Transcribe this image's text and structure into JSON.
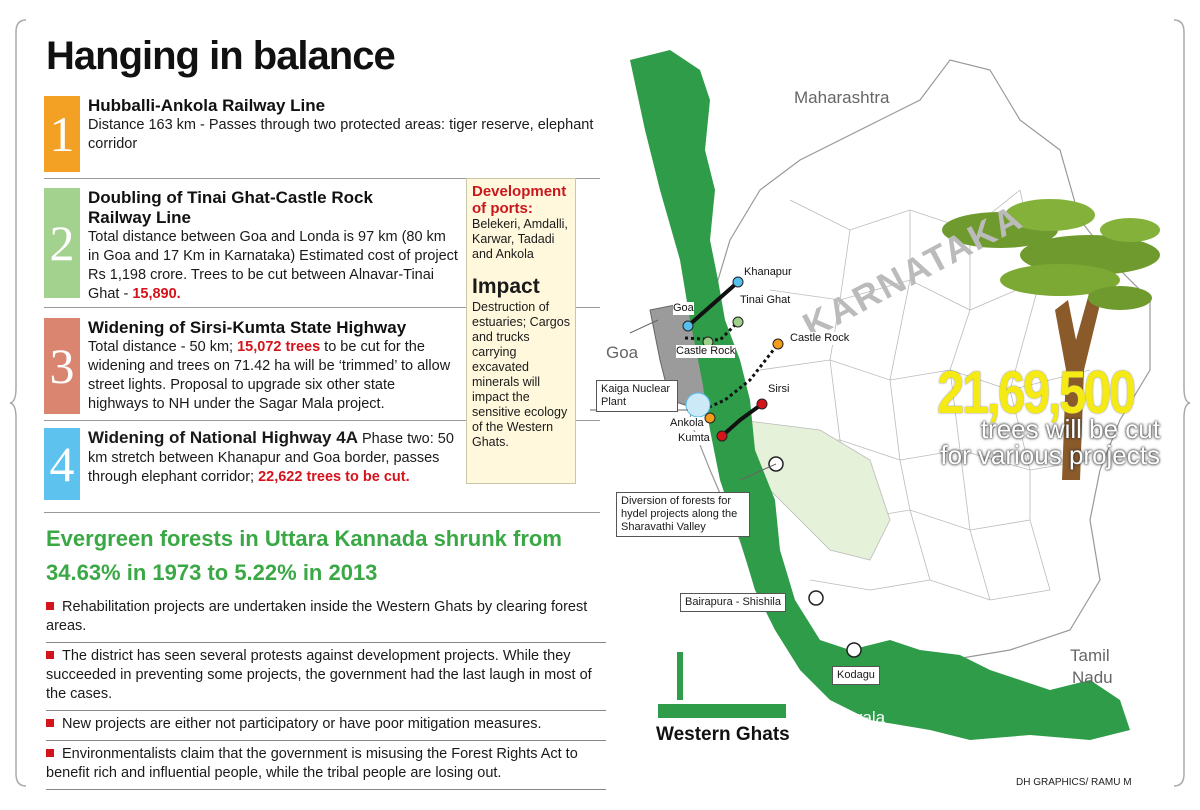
{
  "title": "Hanging in balance",
  "items": [
    {
      "num": "1",
      "color": "#f39c1a",
      "heading": "Hubballi-Ankola Railway Line",
      "text": "Distance 163 km - Passes through two protected areas: tiger reserve, elephant corridor",
      "highlight": ""
    },
    {
      "num": "2",
      "color": "#9fd08a",
      "heading": "Doubling of Tinai Ghat-Castle Rock Railway Line",
      "text": "Total distance between Goa and Londa is 97 km (80 km in Goa and 17 Km in Karnataka) Estimated cost of project Rs 1,198 crore. Trees to be cut between Alnavar-Tinai Ghat - ",
      "highlight": "15,890."
    },
    {
      "num": "3",
      "color": "#d77f68",
      "heading": "Widening of Sirsi-Kumta State Highway",
      "text_a": "Total distance - 50 km; ",
      "highlight": "15,072 trees",
      "text_b": " to be cut for the widening and trees on 71.42 ha will be ‘trimmed’ to allow street lights. Proposal to upgrade six other state highways  to NH under the Sagar Mala project."
    },
    {
      "num": "4",
      "color": "#55bfee",
      "heading": "Widening of National Highway 4A",
      "text": " Phase two: 50 km stretch between Khanapur and Goa border, passes through elephant corridor; ",
      "highlight": "22,622 trees to be cut."
    }
  ],
  "green_heading_1": "Evergreen forests in Uttara Kannada shrunk from",
  "green_heading_2": "34.63% in 1973 to 5.22% in 2013",
  "bullets": [
    "Rehabilitation projects are undertaken inside the Western Ghats by clearing forest areas.",
    "The district has seen several protests against development projects. While they succeeded in preventing some projects, the government had the last laugh in most of the cases.",
    "New projects are either not participatory or have poor mitigation measures.",
    "Environmentalists claim that the government is misusing the Forest Rights Act to benefit rich and influential people, while the tribal people are losing out."
  ],
  "dev_box": {
    "heading": "Development of ports:",
    "ports": "Belekeri, Amdalli, Karwar, Tadadi and Ankola",
    "impact_heading": "Impact",
    "impact_text": "Destruction of estuaries; Cargos and trucks carrying excavated minerals will impact the sensitive ecology of the Western Ghats."
  },
  "map": {
    "regions": {
      "maharashtra": "Maharashtra",
      "goa": "Goa",
      "karnataka": "KARNATAKA",
      "tamil_nadu_1": "Tamil",
      "tamil_nadu_2": "Nadu",
      "kerala": "Kerala"
    },
    "places": {
      "khanapur": "Khanapur",
      "goa": "Goa",
      "tinai_ghat": "Tinai Ghat",
      "castle_rock_a": "Castle Rock",
      "castle_rock_b": "Castle Rock",
      "kaiga": "Kaiga Nuclear Plant",
      "sirsi": "Sirsi",
      "ankola": "Ankola",
      "kumta": "Kumta",
      "diversion": "Diversion of forests for hydel projects along the Sharavathi Valley",
      "bairapura": "Bairapura - Shishila",
      "kodagu": "Kodagu"
    },
    "colors": {
      "ghats": "#2e9c48",
      "light_forest": "#e5f1d8",
      "goa": "#9b9b9b",
      "rail": "#111111",
      "road": "#d4131b"
    }
  },
  "trees_count": "21,69,500",
  "trees_text_1": "trees will be cut",
  "trees_text_2": "for various projects",
  "legend": "Western Ghats",
  "credit": "DH GRAPHICS/ RAMU M"
}
